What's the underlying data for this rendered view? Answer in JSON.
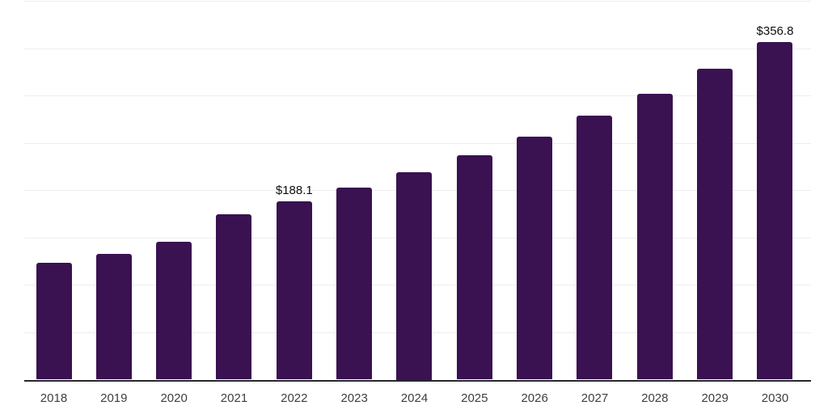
{
  "chart_data": {
    "type": "bar",
    "title": "",
    "xlabel": "",
    "ylabel": "",
    "categories": [
      "2018",
      "2019",
      "2020",
      "2021",
      "2022",
      "2023",
      "2024",
      "2025",
      "2026",
      "2027",
      "2028",
      "2029",
      "2030"
    ],
    "values": [
      123.2,
      132.6,
      145.5,
      174.4,
      188.1,
      203.1,
      219.4,
      237.3,
      256.4,
      278.7,
      302.0,
      328.5,
      356.8
    ],
    "data_labels": {
      "2022": "$188.1",
      "2030": "$356.8"
    },
    "ylim": [
      0,
      400
    ],
    "grid_step": 50,
    "grid": true,
    "legend": false,
    "y_axis_labels_visible": false,
    "colors": {
      "bar": "#3a1151",
      "grid_line": "#ededed",
      "axis_line": "#26262b",
      "tick_label": "#3e3e3e",
      "data_label": "#0f0f0f",
      "background": "#ffffff"
    }
  }
}
